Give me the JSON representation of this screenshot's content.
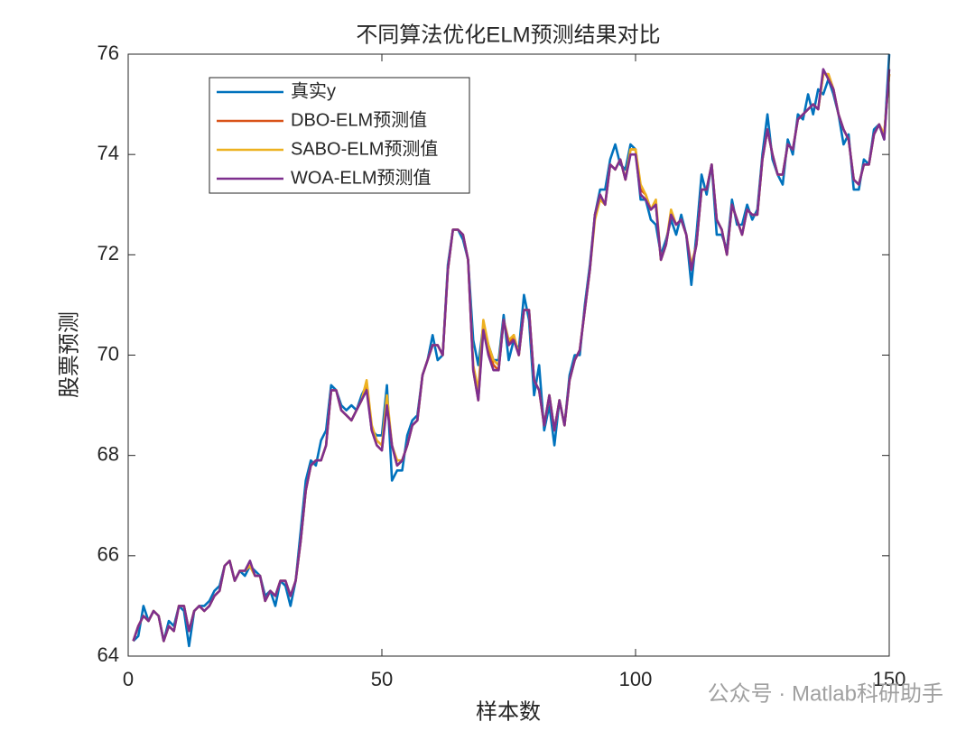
{
  "chart_data": {
    "type": "line",
    "title": "不同算法优化ELM预测结果对比",
    "xlabel": "样本数",
    "ylabel": "股票预测",
    "watermark": "公众号 · Matlab科研助手",
    "xlim": [
      0,
      150
    ],
    "xticks": [
      0,
      50,
      100,
      150
    ],
    "ylim": [
      64,
      76
    ],
    "yticks": [
      64,
      66,
      68,
      70,
      72,
      74,
      76
    ],
    "legend": "upper left",
    "x": [
      1,
      2,
      3,
      4,
      5,
      6,
      7,
      8,
      9,
      10,
      11,
      12,
      13,
      14,
      15,
      16,
      17,
      18,
      19,
      20,
      21,
      22,
      23,
      24,
      25,
      26,
      27,
      28,
      29,
      30,
      31,
      32,
      33,
      34,
      35,
      36,
      37,
      38,
      39,
      40,
      41,
      42,
      43,
      44,
      45,
      46,
      47,
      48,
      49,
      50,
      51,
      52,
      53,
      54,
      55,
      56,
      57,
      58,
      59,
      60,
      61,
      62,
      63,
      64,
      65,
      66,
      67,
      68,
      69,
      70,
      71,
      72,
      73,
      74,
      75,
      76,
      77,
      78,
      79,
      80,
      81,
      82,
      83,
      84,
      85,
      86,
      87,
      88,
      89,
      90,
      91,
      92,
      93,
      94,
      95,
      96,
      97,
      98,
      99,
      100,
      101,
      102,
      103,
      104,
      105,
      106,
      107,
      108,
      109,
      110,
      111,
      112,
      113,
      114,
      115,
      116,
      117,
      118,
      119,
      120,
      121,
      122,
      123,
      124,
      125,
      126,
      127,
      128,
      129,
      130,
      131,
      132,
      133,
      134,
      135,
      136,
      137,
      138,
      139,
      140,
      141,
      142,
      143,
      144,
      145,
      146,
      147,
      148,
      149,
      150
    ],
    "series": [
      {
        "name": "真实y",
        "color": "#0072BD",
        "values": [
          64.3,
          64.4,
          65.0,
          64.7,
          64.9,
          64.8,
          64.3,
          64.7,
          64.6,
          65.0,
          64.9,
          64.2,
          64.9,
          65.0,
          65.0,
          65.1,
          65.3,
          65.4,
          65.8,
          65.9,
          65.5,
          65.7,
          65.6,
          65.8,
          65.7,
          65.6,
          65.2,
          65.3,
          65.0,
          65.5,
          65.4,
          65.0,
          65.5,
          66.5,
          67.5,
          67.9,
          67.8,
          68.3,
          68.5,
          69.4,
          69.3,
          69.0,
          68.9,
          69.0,
          68.9,
          69.2,
          69.4,
          68.5,
          68.4,
          68.4,
          69.4,
          67.5,
          67.7,
          67.7,
          68.4,
          68.7,
          68.8,
          69.6,
          69.9,
          70.4,
          69.9,
          70.0,
          71.8,
          72.5,
          72.5,
          72.3,
          71.9,
          70.3,
          69.8,
          70.6,
          70.2,
          69.9,
          69.9,
          70.8,
          69.9,
          70.3,
          70.1,
          71.2,
          70.7,
          69.2,
          69.8,
          68.5,
          69.0,
          68.2,
          69.1,
          68.6,
          69.6,
          70.0,
          70.0,
          71.0,
          71.8,
          72.8,
          73.3,
          73.3,
          73.9,
          74.2,
          73.8,
          73.7,
          74.2,
          74.1,
          73.1,
          73.1,
          72.7,
          72.6,
          72.0,
          72.3,
          72.7,
          72.4,
          72.8,
          72.4,
          71.4,
          72.4,
          73.6,
          73.2,
          73.8,
          72.4,
          72.4,
          72.1,
          73.1,
          72.6,
          72.6,
          73.0,
          72.7,
          72.9,
          74.0,
          74.8,
          73.9,
          73.6,
          73.4,
          74.3,
          74.0,
          74.8,
          74.7,
          75.2,
          74.8,
          75.3,
          75.2,
          75.5,
          75.2,
          74.8,
          74.2,
          74.4,
          73.3,
          73.3,
          73.9,
          73.8,
          74.5,
          74.6,
          74.3,
          76.0
        ]
      },
      {
        "name": "DBO-ELM预测值",
        "color": "#D95319",
        "values": [
          64.3,
          64.6,
          64.8,
          64.7,
          64.9,
          64.8,
          64.3,
          64.6,
          64.5,
          65.0,
          65.0,
          64.5,
          64.9,
          65.0,
          64.9,
          65.0,
          65.2,
          65.3,
          65.8,
          65.9,
          65.5,
          65.7,
          65.7,
          65.8,
          65.6,
          65.6,
          65.1,
          65.3,
          65.2,
          65.5,
          65.5,
          65.2,
          65.5,
          66.3,
          67.3,
          67.8,
          67.9,
          67.9,
          68.2,
          69.3,
          69.3,
          68.9,
          68.8,
          68.7,
          68.9,
          69.1,
          69.4,
          68.5,
          68.2,
          68.1,
          69.1,
          68.2,
          67.8,
          67.9,
          68.2,
          68.6,
          68.7,
          69.6,
          69.9,
          70.2,
          70.2,
          70.0,
          71.7,
          72.5,
          72.5,
          72.4,
          71.9,
          69.7,
          69.1,
          70.6,
          70.1,
          69.8,
          69.7,
          70.7,
          70.2,
          70.4,
          70.0,
          70.9,
          70.9,
          69.5,
          69.3,
          68.6,
          69.2,
          68.5,
          69.1,
          68.6,
          69.5,
          69.9,
          70.1,
          70.9,
          71.7,
          72.8,
          73.2,
          73.0,
          73.8,
          73.7,
          73.9,
          73.5,
          74.1,
          74.1,
          73.3,
          73.2,
          72.9,
          73.0,
          71.9,
          72.2,
          72.8,
          72.6,
          72.7,
          72.4,
          71.7,
          72.2,
          73.3,
          73.3,
          73.8,
          72.7,
          72.5,
          72.0,
          73.0,
          72.7,
          72.4,
          72.9,
          72.8,
          72.8,
          73.9,
          74.5,
          74.0,
          73.6,
          73.6,
          74.2,
          74.1,
          74.7,
          74.8,
          74.9,
          75.0,
          74.9,
          75.6,
          75.6,
          75.3,
          74.8,
          74.5,
          74.3,
          73.5,
          73.4,
          73.8,
          73.8,
          74.4,
          74.6,
          74.4,
          75.6
        ]
      },
      {
        "name": "SABO-ELM预测值",
        "color": "#EDB120",
        "values": [
          64.3,
          64.6,
          64.8,
          64.7,
          64.9,
          64.8,
          64.3,
          64.6,
          64.5,
          65.0,
          65.0,
          64.5,
          64.9,
          65.0,
          64.9,
          65.0,
          65.2,
          65.3,
          65.8,
          65.9,
          65.5,
          65.7,
          65.7,
          65.8,
          65.6,
          65.6,
          65.1,
          65.3,
          65.2,
          65.5,
          65.5,
          65.2,
          65.5,
          66.3,
          67.3,
          67.8,
          67.9,
          67.9,
          68.2,
          69.3,
          69.3,
          68.9,
          68.8,
          68.7,
          68.9,
          69.1,
          69.5,
          68.6,
          68.3,
          68.2,
          69.2,
          68.2,
          67.9,
          67.9,
          68.2,
          68.6,
          68.7,
          69.6,
          69.9,
          70.2,
          70.2,
          70.0,
          71.7,
          72.5,
          72.5,
          72.4,
          71.9,
          69.8,
          69.3,
          70.7,
          70.2,
          69.9,
          69.8,
          70.7,
          70.3,
          70.4,
          70.0,
          70.9,
          70.9,
          69.5,
          69.3,
          68.6,
          69.2,
          68.5,
          69.1,
          68.6,
          69.5,
          69.9,
          70.1,
          70.9,
          71.7,
          72.7,
          73.1,
          73.0,
          73.8,
          73.7,
          73.9,
          73.5,
          74.1,
          74.1,
          73.4,
          73.2,
          72.9,
          73.1,
          71.9,
          72.2,
          72.9,
          72.6,
          72.7,
          72.4,
          71.8,
          72.2,
          73.3,
          73.3,
          73.8,
          72.7,
          72.5,
          72.0,
          73.0,
          72.7,
          72.4,
          72.9,
          72.8,
          72.8,
          73.9,
          74.5,
          74.0,
          73.6,
          73.6,
          74.2,
          74.1,
          74.7,
          74.8,
          74.9,
          75.0,
          74.9,
          75.6,
          75.6,
          75.3,
          74.8,
          74.5,
          74.3,
          73.5,
          73.4,
          73.8,
          73.8,
          74.4,
          74.6,
          74.4,
          75.6
        ]
      },
      {
        "name": "WOA-ELM预测值",
        "color": "#7E2F8E",
        "values": [
          64.3,
          64.6,
          64.8,
          64.7,
          64.9,
          64.8,
          64.3,
          64.6,
          64.5,
          65.0,
          65.0,
          64.5,
          64.9,
          65.0,
          64.9,
          65.0,
          65.2,
          65.3,
          65.8,
          65.9,
          65.5,
          65.7,
          65.7,
          65.9,
          65.6,
          65.6,
          65.1,
          65.3,
          65.2,
          65.5,
          65.5,
          65.2,
          65.5,
          66.3,
          67.3,
          67.8,
          67.9,
          67.9,
          68.2,
          69.3,
          69.3,
          68.9,
          68.8,
          68.7,
          68.9,
          69.1,
          69.3,
          68.5,
          68.2,
          68.1,
          69.0,
          68.2,
          67.8,
          67.9,
          68.2,
          68.6,
          68.7,
          69.6,
          69.9,
          70.2,
          70.2,
          70.0,
          71.7,
          72.5,
          72.5,
          72.4,
          71.9,
          69.7,
          69.1,
          70.5,
          70.0,
          69.7,
          69.7,
          70.7,
          70.2,
          70.3,
          70.0,
          70.9,
          70.9,
          69.5,
          69.3,
          68.6,
          69.2,
          68.5,
          69.1,
          68.6,
          69.5,
          69.9,
          70.1,
          70.9,
          71.7,
          72.8,
          73.2,
          73.0,
          73.8,
          73.7,
          73.9,
          73.5,
          74.0,
          74.0,
          73.2,
          73.1,
          72.9,
          73.0,
          71.9,
          72.2,
          72.8,
          72.6,
          72.7,
          72.4,
          71.7,
          72.2,
          73.3,
          73.3,
          73.8,
          72.7,
          72.5,
          72.0,
          73.0,
          72.7,
          72.4,
          72.9,
          72.8,
          72.8,
          73.9,
          74.5,
          74.0,
          73.6,
          73.6,
          74.2,
          74.1,
          74.7,
          74.8,
          74.9,
          75.0,
          74.9,
          75.7,
          75.5,
          75.3,
          74.8,
          74.5,
          74.3,
          73.5,
          73.4,
          73.8,
          73.8,
          74.4,
          74.6,
          74.3,
          75.7
        ]
      }
    ]
  }
}
